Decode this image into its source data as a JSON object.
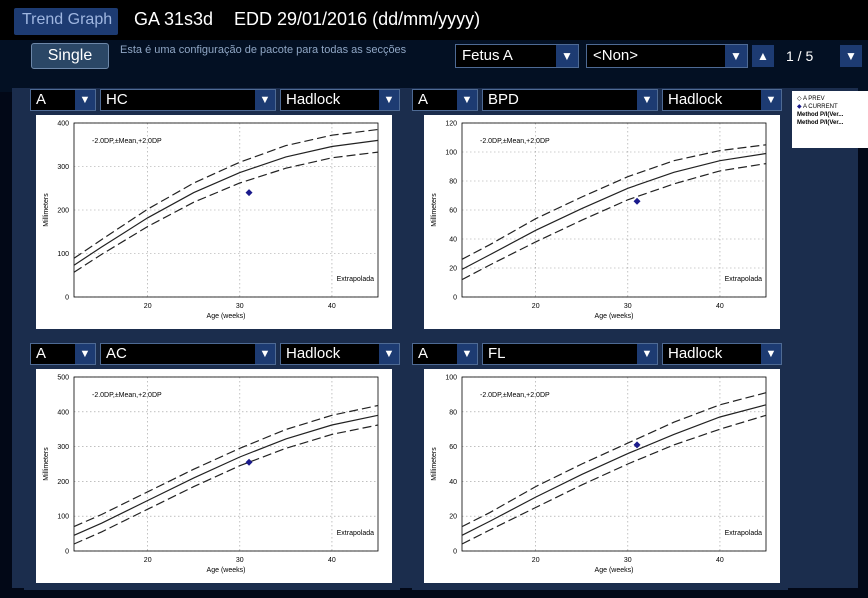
{
  "header": {
    "tab_label": "Trend Graph",
    "ga": "GA 31s3d",
    "edd": "EDD 29/01/2016 (dd/mm/yyyy)"
  },
  "controls": {
    "single_label": "Single",
    "config_text": "Esta é uma configuração de pacote para todas as secções",
    "fetus_select": "Fetus A",
    "non_select": "<Non>",
    "page_indicator": "1 / 5"
  },
  "legend": {
    "items": [
      "A PREV",
      "A CURRENT",
      "Method P/I(Ver...",
      "Method P/I(Ver..."
    ]
  },
  "panels": [
    {
      "fetus": "A",
      "measure": "HC",
      "method": "Hadlock"
    },
    {
      "fetus": "A",
      "measure": "BPD",
      "method": "Hadlock"
    },
    {
      "fetus": "A",
      "measure": "AC",
      "method": "Hadlock"
    },
    {
      "fetus": "A",
      "measure": "FL",
      "method": "Hadlock"
    }
  ],
  "chart_data": [
    {
      "type": "line",
      "title": "HC",
      "xlabel": "Age (weeks)",
      "ylabel": "Millimeters",
      "xlim": [
        12,
        45
      ],
      "ylim": [
        0,
        400
      ],
      "xticks": [
        20,
        30,
        40
      ],
      "yticks": [
        0,
        100,
        200,
        300,
        400
      ],
      "annotation_top": "-2.0DP,±Mean,+2.0DP",
      "annotation_bottom": "Extrapolada",
      "series": [
        {
          "name": "-2.0DP",
          "x": [
            12,
            15,
            20,
            25,
            30,
            35,
            40,
            45
          ],
          "y": [
            57,
            98,
            162,
            218,
            262,
            296,
            320,
            333
          ]
        },
        {
          "name": "Mean",
          "x": [
            12,
            15,
            20,
            25,
            30,
            35,
            40,
            45
          ],
          "y": [
            73,
            115,
            182,
            240,
            286,
            322,
            346,
            360
          ]
        },
        {
          "name": "+2.0DP",
          "x": [
            12,
            15,
            20,
            25,
            30,
            35,
            40,
            45
          ],
          "y": [
            89,
            132,
            202,
            262,
            310,
            348,
            372,
            385
          ]
        }
      ],
      "points": [
        {
          "name": "A CURRENT",
          "x": 31,
          "y": 240
        }
      ],
      "grid": true
    },
    {
      "type": "line",
      "title": "BPD",
      "xlabel": "Age (weeks)",
      "ylabel": "Millimeters",
      "xlim": [
        12,
        45
      ],
      "ylim": [
        0,
        120
      ],
      "xticks": [
        20,
        30,
        40
      ],
      "yticks": [
        0,
        20,
        40,
        60,
        80,
        100,
        120
      ],
      "annotation_top": "-2.0DP,±Mean,+2.0DP",
      "annotation_bottom": "Extrapolada",
      "series": [
        {
          "name": "-2.0DP",
          "x": [
            12,
            15,
            20,
            25,
            30,
            35,
            40,
            45
          ],
          "y": [
            12,
            22,
            38,
            53,
            67,
            78,
            87,
            92
          ]
        },
        {
          "name": "Mean",
          "x": [
            12,
            15,
            20,
            25,
            30,
            35,
            40,
            45
          ],
          "y": [
            19,
            29,
            46,
            61,
            75,
            86,
            94,
            99
          ]
        },
        {
          "name": "+2.0DP",
          "x": [
            12,
            15,
            20,
            25,
            30,
            35,
            40,
            45
          ],
          "y": [
            26,
            36,
            54,
            69,
            83,
            94,
            101,
            105
          ]
        }
      ],
      "points": [
        {
          "name": "A CURRENT",
          "x": 31,
          "y": 66
        }
      ],
      "grid": true
    },
    {
      "type": "line",
      "title": "AC",
      "xlabel": "Age (weeks)",
      "ylabel": "Millimeters",
      "xlim": [
        12,
        45
      ],
      "ylim": [
        0,
        500
      ],
      "xticks": [
        20,
        30,
        40
      ],
      "yticks": [
        0,
        100,
        200,
        300,
        400,
        500
      ],
      "annotation_top": "-2.0DP,±Mean,+2.0DP",
      "annotation_bottom": "Extrapolada",
      "series": [
        {
          "name": "-2.0DP",
          "x": [
            12,
            15,
            20,
            25,
            30,
            35,
            40,
            45
          ],
          "y": [
            20,
            55,
            120,
            185,
            245,
            295,
            335,
            362
          ]
        },
        {
          "name": "Mean",
          "x": [
            12,
            15,
            20,
            25,
            30,
            35,
            40,
            45
          ],
          "y": [
            45,
            80,
            145,
            210,
            270,
            322,
            362,
            390
          ]
        },
        {
          "name": "+2.0DP",
          "x": [
            12,
            15,
            20,
            25,
            30,
            35,
            40,
            45
          ],
          "y": [
            70,
            105,
            170,
            235,
            295,
            349,
            390,
            418
          ]
        }
      ],
      "points": [
        {
          "name": "A CURRENT",
          "x": 31,
          "y": 255
        }
      ],
      "grid": true
    },
    {
      "type": "line",
      "title": "FL",
      "xlabel": "Age (weeks)",
      "ylabel": "Millimeters",
      "xlim": [
        12,
        45
      ],
      "ylim": [
        0,
        100
      ],
      "xticks": [
        20,
        30,
        40
      ],
      "yticks": [
        0,
        20,
        40,
        60,
        80,
        100
      ],
      "annotation_top": "-2.0DP,±Mean,+2.0DP",
      "annotation_bottom": "Extrapolada",
      "series": [
        {
          "name": "-2.0DP",
          "x": [
            12,
            15,
            20,
            25,
            30,
            35,
            40,
            45
          ],
          "y": [
            4,
            12,
            25,
            38,
            50,
            61,
            70,
            78
          ]
        },
        {
          "name": "Mean",
          "x": [
            12,
            15,
            20,
            25,
            30,
            35,
            40,
            45
          ],
          "y": [
            9,
            17,
            31,
            44,
            56,
            67,
            77,
            84
          ]
        },
        {
          "name": "+2.0DP",
          "x": [
            12,
            15,
            20,
            25,
            30,
            35,
            40,
            45
          ],
          "y": [
            14,
            22,
            37,
            50,
            62,
            74,
            84,
            91
          ]
        }
      ],
      "points": [
        {
          "name": "A CURRENT",
          "x": 31,
          "y": 61
        }
      ],
      "grid": true
    }
  ]
}
